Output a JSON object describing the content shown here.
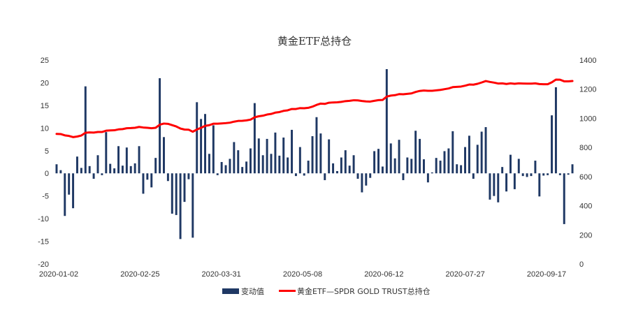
{
  "chart_data": {
    "type": "bar+line",
    "title": "黄金ETF总持仓",
    "x_tick_labels": [
      "2020-01-02",
      "2020-02-25",
      "2020-03-31",
      "2020-05-08",
      "2020-06-12",
      "2020-07-27",
      "2020-09-17"
    ],
    "left_axis": {
      "ticks": [
        "25",
        "20",
        "15",
        "10",
        "5",
        "0",
        "-5",
        "-10",
        "-15",
        "-20"
      ],
      "ylim": [
        -20,
        25
      ]
    },
    "right_axis": {
      "ticks": [
        "1400",
        "1200",
        "1000",
        "800",
        "600",
        "400",
        "200",
        "0"
      ],
      "ylim": [
        0,
        1400
      ]
    },
    "legend": {
      "position": "bottom"
    },
    "series": [
      {
        "name": "变动值",
        "type": "bar",
        "axis": "left",
        "color": "#1f3864",
        "values": [
          2.0,
          0.7,
          -9.4,
          -4.7,
          -7.7,
          3.7,
          1.2,
          19.2,
          1.6,
          -1.2,
          4.0,
          -0.4,
          9.1,
          2.1,
          1.1,
          6.0,
          1.7,
          5.7,
          1.6,
          2.2,
          6.0,
          -4.5,
          -1.4,
          -3.1,
          3.4,
          21.0,
          8.0,
          -1.7,
          -8.9,
          -9.2,
          -14.5,
          -6.3,
          -1.3,
          -14.2,
          15.7,
          12.0,
          13.1,
          4.3,
          10.6,
          -0.4,
          2.5,
          1.8,
          3.2,
          6.9,
          5.1,
          1.4,
          2.6,
          5.5,
          15.5,
          7.7,
          4.0,
          7.6,
          4.3,
          9.0,
          3.9,
          7.9,
          3.5,
          9.6,
          -0.6,
          5.8,
          -0.5,
          2.8,
          8.2,
          12.4,
          8.8,
          -1.5,
          7.5,
          2.2,
          0.5,
          3.5,
          5.1,
          1.7,
          4.0,
          -1.2,
          -4.2,
          -2.7,
          -1.0,
          4.9,
          5.4,
          1.5,
          23.0,
          6.6,
          3.3,
          7.4,
          -1.5,
          3.5,
          3.2,
          9.4,
          7.6,
          3.1,
          -2.0,
          0.2,
          3.4,
          2.8,
          4.9,
          5.5,
          9.3,
          2.0,
          1.8,
          5.8,
          8.3,
          -1.2,
          6.3,
          9.2,
          10.2,
          -5.8,
          -5.0,
          -6.4,
          1.4,
          -4.0,
          4.1,
          -3.5,
          3.2,
          -0.6,
          -0.8,
          -0.6,
          2.8,
          -5.1,
          -0.5,
          -0.4,
          12.8,
          19.0,
          -0.4,
          -11.2,
          -0.3,
          2.0
        ]
      },
      {
        "name": "黄金ETF—SPDR GOLD TRUST总持仓",
        "type": "line",
        "axis": "right",
        "color": "#ff0000",
        "values": [
          893,
          892,
          883,
          879,
          871,
          875,
          882,
          901,
          903,
          902,
          906,
          906,
          915,
          917,
          918,
          924,
          926,
          932,
          933,
          935,
          941,
          937,
          935,
          932,
          935,
          956,
          964,
          962,
          953,
          944,
          930,
          923,
          922,
          908,
          923,
          935,
          948,
          953,
          963,
          963,
          965,
          967,
          970,
          977,
          982,
          983,
          986,
          991,
          1007,
          1014,
          1018,
          1026,
          1030,
          1039,
          1043,
          1051,
          1055,
          1064,
          1064,
          1070,
          1069,
          1072,
          1080,
          1092,
          1101,
          1099,
          1107,
          1109,
          1110,
          1113,
          1118,
          1120,
          1124,
          1123,
          1119,
          1116,
          1115,
          1120,
          1125,
          1126,
          1149,
          1156,
          1159,
          1166,
          1165,
          1168,
          1171,
          1181,
          1188,
          1191,
          1189,
          1189,
          1192,
          1195,
          1200,
          1205,
          1214,
          1216,
          1218,
          1224,
          1232,
          1231,
          1237,
          1246,
          1256,
          1250,
          1245,
          1239,
          1240,
          1236,
          1240,
          1237,
          1240,
          1239,
          1238,
          1238,
          1240,
          1235,
          1234,
          1234,
          1247,
          1266,
          1265,
          1254,
          1254,
          1256
        ]
      }
    ]
  }
}
